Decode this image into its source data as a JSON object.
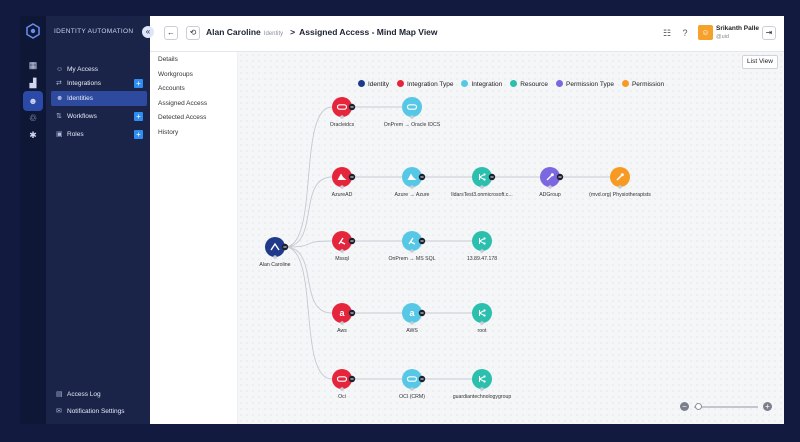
{
  "app": {
    "brand": "IDENTITY AUTOMATION"
  },
  "nav": {
    "items": [
      {
        "label": "My Access",
        "icon": "user-access-icon",
        "plus": false,
        "active": false
      },
      {
        "label": "Integrations",
        "icon": "integrations-icon",
        "plus": true,
        "active": false
      },
      {
        "label": "Identities",
        "icon": "identities-icon",
        "plus": false,
        "active": true
      },
      {
        "label": "Workflows",
        "icon": "workflows-icon",
        "plus": true,
        "active": false
      },
      {
        "label": "Roles",
        "icon": "roles-icon",
        "plus": true,
        "active": false
      }
    ],
    "bottom": [
      {
        "label": "Access Log",
        "icon": "access-log-icon"
      },
      {
        "label": "Notification Settings",
        "icon": "notification-icon"
      }
    ]
  },
  "header": {
    "identity_name": "Alan Caroline",
    "identity_type": "Identity",
    "separator": ">",
    "page_title": "Assigned Access - Mind Map View",
    "user_name": "Srikanth Palle",
    "user_handle": "@uid",
    "user_initial": "☺"
  },
  "menu": {
    "items": [
      "Details",
      "Workgroups",
      "Accounts",
      "Assigned Access",
      "Detected Access",
      "History"
    ]
  },
  "toolbar": {
    "list_view_label": "List View"
  },
  "legend": [
    {
      "label": "Identity",
      "color": "#1f3a8a"
    },
    {
      "label": "Integration Type",
      "color": "#e5253b"
    },
    {
      "label": "Integration",
      "color": "#56c8e6"
    },
    {
      "label": "Resource",
      "color": "#2bbfae"
    },
    {
      "label": "Permission Type",
      "color": "#7b67e0"
    },
    {
      "label": "Permission",
      "color": "#f79a24"
    }
  ],
  "mindmap": {
    "identity": {
      "label": "Alan Caroline",
      "kind": "identity",
      "icon": "person"
    },
    "branches": [
      [
        {
          "label": "Oracleidcs",
          "kind": "integration_type",
          "icon": "oracle"
        },
        {
          "label": "OnPrem → Oracle IDCS",
          "kind": "integration",
          "icon": "oracle"
        }
      ],
      [
        {
          "label": "AzureAD",
          "kind": "integration_type",
          "icon": "azure"
        },
        {
          "label": "Azure → Azure",
          "kind": "integration",
          "icon": "azure"
        },
        {
          "label": "lldarsTest3.onmicrosoft.c...",
          "kind": "resource",
          "icon": "share"
        },
        {
          "label": "ADGroup",
          "kind": "permission_type",
          "icon": "key"
        },
        {
          "label": "(mvd.org) Physiotherapists",
          "kind": "permission",
          "icon": "key"
        }
      ],
      [
        {
          "label": "Mssql",
          "kind": "integration_type",
          "icon": "mssql"
        },
        {
          "label": "OnPrem → MS SQL",
          "kind": "integration",
          "icon": "mssql"
        },
        {
          "label": "13.89.47.178",
          "kind": "resource",
          "icon": "share"
        }
      ],
      [
        {
          "label": "Aws",
          "kind": "integration_type",
          "icon": "aws"
        },
        {
          "label": "AWS",
          "kind": "integration",
          "icon": "aws"
        },
        {
          "label": "root",
          "kind": "resource",
          "icon": "share"
        }
      ],
      [
        {
          "label": "Oci",
          "kind": "integration_type",
          "icon": "oracle"
        },
        {
          "label": "OCI (CRM)",
          "kind": "integration",
          "icon": "oracle"
        },
        {
          "label": "guardiantechnologygroup",
          "kind": "resource",
          "icon": "share"
        }
      ]
    ]
  },
  "zoom": {
    "minus": "−",
    "plus": "+",
    "level": 0.05
  }
}
